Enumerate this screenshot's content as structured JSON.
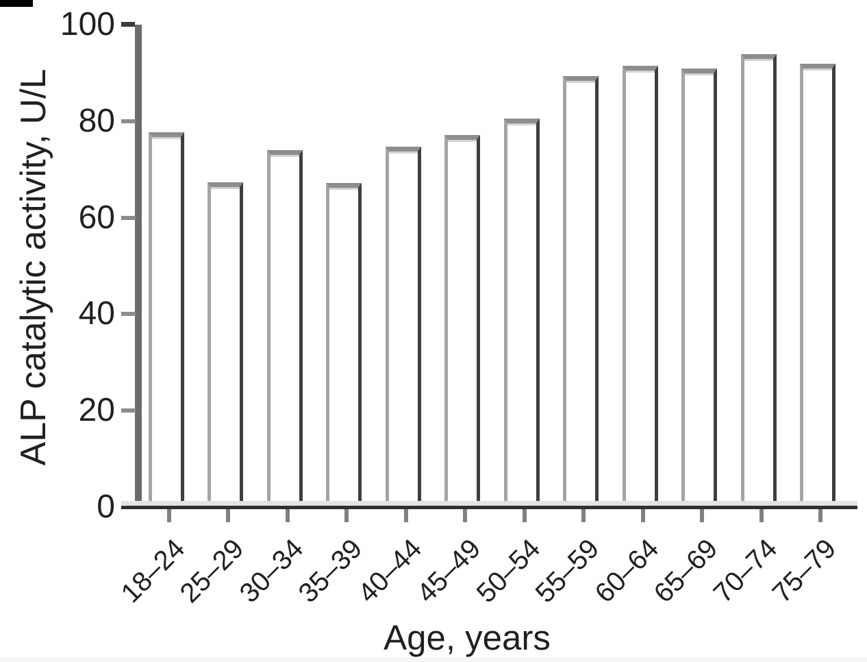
{
  "figure": {
    "panel_marker": "black-crop-bar",
    "footer_strip_color": "#f4f5f7"
  },
  "chart_data": {
    "type": "bar",
    "title": "",
    "xlabel": "Age, years",
    "ylabel": "ALP catalytic activity, U/L",
    "categories": [
      "18–24",
      "25–29",
      "30–34",
      "35–39",
      "40–44",
      "45–49",
      "50–54",
      "55–59",
      "60–64",
      "65–69",
      "70–74",
      "75–79"
    ],
    "values": [
      77.7,
      67.3,
      74.0,
      67.2,
      74.7,
      77.1,
      80.5,
      89.3,
      91.5,
      90.9,
      93.9,
      91.9
    ],
    "ylim": [
      0,
      100
    ],
    "yticks": [
      0,
      20,
      40,
      60,
      80,
      100
    ],
    "grid": false,
    "legend": "none",
    "bar_fill": "#ffffff",
    "bar_stroke_dark": "#3e3f41",
    "bar_stroke_light": "#a4a5a7",
    "bar_stroke_top": "#8c8d8f",
    "axis_color": "#6b6c6e",
    "tick_color": "#8b8c8e",
    "text_color": "#1f2022"
  }
}
